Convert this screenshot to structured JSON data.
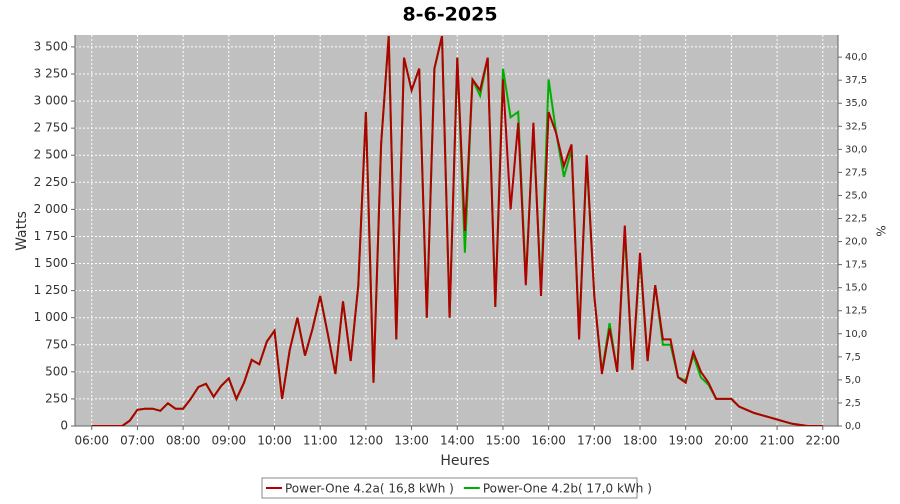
{
  "chart_data": {
    "type": "line",
    "title": "8-6-2025",
    "x_label": "Heures",
    "y_label": "Watts",
    "y2_label": "%",
    "x": [
      "06:00",
      "06:10",
      "06:20",
      "06:30",
      "06:40",
      "06:50",
      "07:00",
      "07:10",
      "07:20",
      "07:30",
      "07:40",
      "07:50",
      "08:00",
      "08:10",
      "08:20",
      "08:30",
      "08:40",
      "08:50",
      "09:00",
      "09:10",
      "09:20",
      "09:30",
      "09:40",
      "09:50",
      "10:00",
      "10:10",
      "10:20",
      "10:30",
      "10:40",
      "10:50",
      "11:00",
      "11:10",
      "11:20",
      "11:30",
      "11:40",
      "11:50",
      "12:00",
      "12:10",
      "12:20",
      "12:30",
      "12:40",
      "12:50",
      "13:00",
      "13:10",
      "13:20",
      "13:30",
      "13:40",
      "13:50",
      "14:00",
      "14:10",
      "14:20",
      "14:30",
      "14:40",
      "14:50",
      "15:00",
      "15:10",
      "15:20",
      "15:30",
      "15:40",
      "15:50",
      "16:00",
      "16:10",
      "16:20",
      "16:30",
      "16:40",
      "16:50",
      "17:00",
      "17:10",
      "17:20",
      "17:30",
      "17:40",
      "17:50",
      "18:00",
      "18:10",
      "18:20",
      "18:30",
      "18:40",
      "18:50",
      "19:00",
      "19:10",
      "19:20",
      "19:30",
      "19:40",
      "19:50",
      "20:00",
      "20:10",
      "20:20",
      "20:30",
      "20:40",
      "20:50",
      "21:00",
      "21:10",
      "21:20",
      "21:30",
      "21:40",
      "21:50",
      "22:00"
    ],
    "xlim": [
      "05:38",
      "22:20"
    ],
    "xticks": [
      "06:00",
      "07:00",
      "08:00",
      "09:00",
      "10:00",
      "11:00",
      "12:00",
      "13:00",
      "14:00",
      "15:00",
      "16:00",
      "17:00",
      "18:00",
      "19:00",
      "20:00",
      "21:00",
      "22:00"
    ],
    "ylim": [
      0,
      3610
    ],
    "yticks": [
      0,
      250,
      500,
      750,
      {
        "value": 1000,
        "label": "1 000"
      },
      {
        "value": 1250,
        "label": "1 250"
      },
      {
        "value": 1500,
        "label": "1 500"
      },
      {
        "value": 1750,
        "label": "1 750"
      },
      {
        "value": 2000,
        "label": "2 000"
      },
      {
        "value": 2250,
        "label": "2 250"
      },
      {
        "value": 2500,
        "label": "2 500"
      },
      {
        "value": 2750,
        "label": "2 750"
      },
      {
        "value": 3000,
        "label": "3 000"
      },
      {
        "value": 3250,
        "label": "3 250"
      },
      {
        "value": 3500,
        "label": "3 500"
      }
    ],
    "y2lim": [
      0,
      42.4
    ],
    "y2ticks": [
      {
        "value": 0,
        "label": "0,0"
      },
      {
        "value": 2.5,
        "label": "2,5"
      },
      {
        "value": 5,
        "label": "5,0"
      },
      {
        "value": 7.5,
        "label": "7,5"
      },
      {
        "value": 10,
        "label": "10,0"
      },
      {
        "value": 12.5,
        "label": "12,5"
      },
      {
        "value": 15,
        "label": "15,0"
      },
      {
        "value": 17.5,
        "label": "17,5"
      },
      {
        "value": 20,
        "label": "20,0"
      },
      {
        "value": 22.5,
        "label": "22,5"
      },
      {
        "value": 25,
        "label": "25,0"
      },
      {
        "value": 27.5,
        "label": "27,5"
      },
      {
        "value": 30,
        "label": "30,0"
      },
      {
        "value": 32.5,
        "label": "32,5"
      },
      {
        "value": 35,
        "label": "35,0"
      },
      {
        "value": 37.5,
        "label": "37,5"
      },
      {
        "value": 40,
        "label": "40,0"
      }
    ],
    "grid": true,
    "series": [
      {
        "name": "Power-One 4.2a( 16,8 kWh )",
        "color": "#b00000",
        "values": [
          0,
          0,
          0,
          0,
          0,
          50,
          150,
          160,
          160,
          140,
          210,
          160,
          160,
          250,
          360,
          390,
          270,
          370,
          440,
          250,
          400,
          610,
          570,
          780,
          880,
          250,
          700,
          1000,
          650,
          900,
          1200,
          850,
          480,
          1150,
          600,
          1300,
          2900,
          400,
          2600,
          3600,
          800,
          3400,
          3100,
          3300,
          1000,
          3300,
          3600,
          1000,
          3400,
          1800,
          3200,
          3100,
          3400,
          1100,
          3200,
          2000,
          2800,
          1300,
          2800,
          1200,
          2900,
          2700,
          2400,
          2600,
          800,
          2500,
          1200,
          480,
          900,
          500,
          1850,
          520,
          1600,
          600,
          1300,
          800,
          800,
          450,
          400,
          680,
          500,
          400,
          250,
          250,
          250,
          180,
          150,
          120,
          100,
          80,
          60,
          40,
          20,
          10,
          0,
          0,
          0
        ]
      },
      {
        "name": "Power-One 4.2b( 17,0 kWh )",
        "color": "#00b000",
        "values": [
          0,
          0,
          0,
          0,
          0,
          50,
          150,
          160,
          160,
          140,
          210,
          160,
          160,
          250,
          360,
          390,
          270,
          370,
          440,
          250,
          400,
          610,
          570,
          780,
          880,
          250,
          700,
          1000,
          650,
          900,
          1200,
          850,
          480,
          1150,
          600,
          1300,
          2900,
          400,
          2600,
          3600,
          800,
          3400,
          3100,
          3300,
          1000,
          3300,
          3600,
          1000,
          3400,
          1600,
          3200,
          3050,
          3400,
          1100,
          3300,
          2850,
          2900,
          1350,
          2750,
          1250,
          3200,
          2700,
          2300,
          2550,
          850,
          2450,
          1200,
          500,
          950,
          500,
          1800,
          520,
          1550,
          600,
          1300,
          750,
          750,
          450,
          420,
          650,
          450,
          380,
          250,
          250,
          250,
          180,
          150,
          120,
          100,
          80,
          60,
          40,
          20,
          10,
          0,
          0,
          0
        ]
      }
    ]
  }
}
